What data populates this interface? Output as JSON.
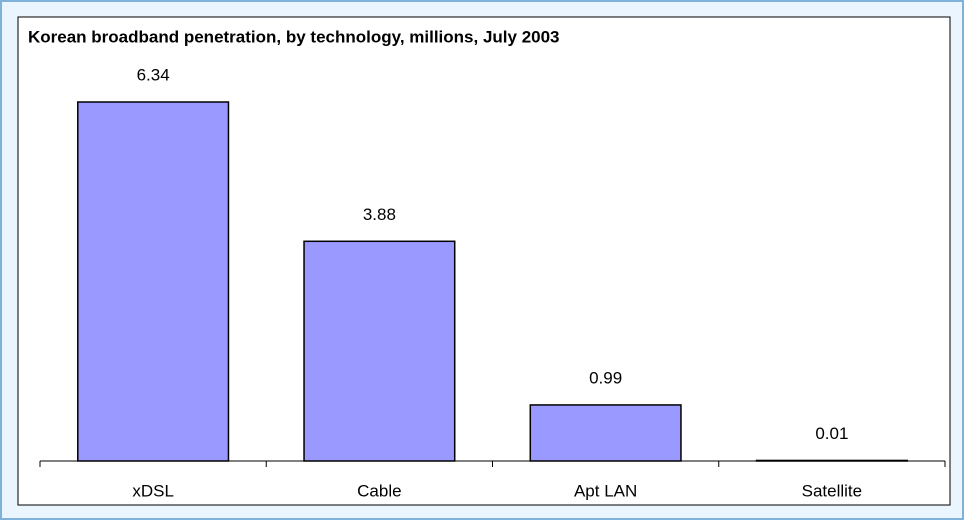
{
  "chart_data": {
    "type": "bar",
    "title": "Korean broadband penetration, by technology, millions, July 2003",
    "categories": [
      "xDSL",
      "Cable",
      "Apt LAN",
      "Satellite"
    ],
    "values": [
      6.34,
      3.88,
      0.99,
      0.01
    ],
    "color": "#9999ff"
  }
}
